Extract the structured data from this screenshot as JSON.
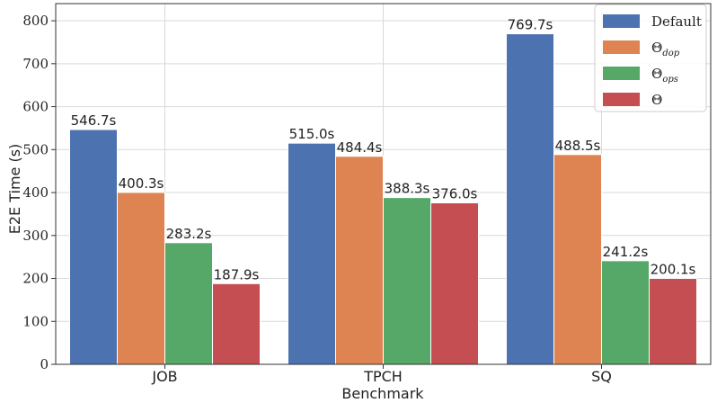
{
  "chart_data": {
    "type": "bar",
    "title": "",
    "xlabel": "Benchmark",
    "ylabel": "E2E Time (s)",
    "categories": [
      "JOB",
      "TPCH",
      "SQ"
    ],
    "ylim": [
      0,
      840
    ],
    "yticks": [
      0,
      100,
      200,
      300,
      400,
      500,
      600,
      700,
      800
    ],
    "grid": true,
    "legend_position": "top-right",
    "series": [
      {
        "name": "Default",
        "legend_symbol": "",
        "legend_sub": "",
        "color": "#4c72b0",
        "values": [
          546.7,
          515.0,
          769.7
        ],
        "labels": [
          "546.7s",
          "515.0s",
          "769.7s"
        ]
      },
      {
        "name": "Θdop",
        "legend_symbol": "Θ",
        "legend_sub": "dop",
        "color": "#dd8452",
        "values": [
          400.3,
          484.4,
          488.5
        ],
        "labels": [
          "400.3s",
          "484.4s",
          "488.5s"
        ]
      },
      {
        "name": "Θops",
        "legend_symbol": "Θ",
        "legend_sub": "ops",
        "color": "#55a868",
        "values": [
          283.2,
          388.3,
          241.2
        ],
        "labels": [
          "283.2s",
          "388.3s",
          "241.2s"
        ]
      },
      {
        "name": "Θ",
        "legend_symbol": "Θ",
        "legend_sub": "",
        "color": "#c44e52",
        "values": [
          187.9,
          376.0,
          200.1
        ],
        "labels": [
          "187.9s",
          "376.0s",
          "200.1s"
        ]
      }
    ]
  }
}
